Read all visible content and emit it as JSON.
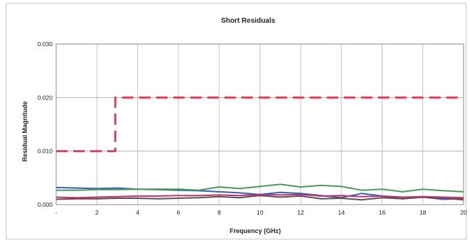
{
  "chart_data": {
    "type": "line",
    "title": "Short Residuals",
    "xlabel": "Frequency (GHz)",
    "ylabel": "Residual Magnitude",
    "xlim": [
      0,
      20
    ],
    "ylim": [
      0,
      0.03
    ],
    "x_ticks": [
      {
        "value": 0,
        "label": "-"
      },
      {
        "value": 2,
        "label": "2"
      },
      {
        "value": 4,
        "label": "4"
      },
      {
        "value": 6,
        "label": "6"
      },
      {
        "value": 8,
        "label": "8"
      },
      {
        "value": 10,
        "label": "10"
      },
      {
        "value": 12,
        "label": "12"
      },
      {
        "value": 14,
        "label": "14"
      },
      {
        "value": 16,
        "label": "16"
      },
      {
        "value": 18,
        "label": "18"
      },
      {
        "value": 20,
        "label": "20"
      }
    ],
    "y_ticks": [
      {
        "value": 0,
        "label": "0.000"
      },
      {
        "value": 0.01,
        "label": "0.010"
      },
      {
        "value": 0.02,
        "label": "0.020"
      },
      {
        "value": 0.03,
        "label": "0.030"
      }
    ],
    "grid": true,
    "series": [
      {
        "color": "#d8405a",
        "dashed": true,
        "x": [
          0,
          2.9,
          2.9,
          20
        ],
        "y": [
          0.01,
          0.01,
          0.02,
          0.02
        ]
      },
      {
        "color": "#3a5fb0",
        "dashed": false,
        "x": [
          0,
          1,
          2,
          3,
          4,
          5,
          6,
          7,
          8,
          9,
          10,
          11,
          12,
          13,
          14,
          15,
          16,
          17,
          18,
          19,
          20
        ],
        "y": [
          0.0032,
          0.0031,
          0.003,
          0.0031,
          0.0029,
          0.0028,
          0.0027,
          0.0026,
          0.0024,
          0.0022,
          0.0019,
          0.0023,
          0.0021,
          0.0017,
          0.0013,
          0.0021,
          0.0016,
          0.0011,
          0.0014,
          0.001,
          0.0011
        ]
      },
      {
        "color": "#4a9a5a",
        "dashed": false,
        "x": [
          0,
          1,
          2,
          3,
          4,
          5,
          6,
          7,
          8,
          9,
          10,
          11,
          12,
          13,
          14,
          15,
          16,
          17,
          18,
          19,
          20
        ],
        "y": [
          0.0027,
          0.0027,
          0.0028,
          0.0028,
          0.0029,
          0.0029,
          0.0029,
          0.0027,
          0.0033,
          0.003,
          0.0034,
          0.0038,
          0.0033,
          0.0036,
          0.0034,
          0.0027,
          0.0029,
          0.0024,
          0.0029,
          0.0026,
          0.0024
        ]
      },
      {
        "color": "#555555",
        "dashed": false,
        "x": [
          0,
          1,
          2,
          3,
          4,
          5,
          6,
          7,
          8,
          9,
          10,
          11,
          12,
          13,
          14,
          15,
          16,
          17,
          18,
          19,
          20
        ],
        "y": [
          0.001,
          0.0011,
          0.0011,
          0.0012,
          0.0012,
          0.0011,
          0.0012,
          0.0013,
          0.0015,
          0.0013,
          0.0017,
          0.0014,
          0.0016,
          0.0011,
          0.0012,
          0.0009,
          0.0013,
          0.0011,
          0.0014,
          0.0012,
          0.0009
        ]
      },
      {
        "color": "#c0306a",
        "dashed": false,
        "x": [
          0,
          1,
          2,
          3,
          4,
          5,
          6,
          7,
          8,
          9,
          10,
          11,
          12,
          13,
          14,
          15,
          16,
          17,
          18,
          19,
          20
        ],
        "y": [
          0.0014,
          0.0013,
          0.0014,
          0.0015,
          0.0016,
          0.0016,
          0.0017,
          0.0017,
          0.0018,
          0.0017,
          0.0019,
          0.0018,
          0.0019,
          0.0016,
          0.0017,
          0.0015,
          0.0016,
          0.0014,
          0.0015,
          0.0014,
          0.0013
        ]
      }
    ]
  }
}
